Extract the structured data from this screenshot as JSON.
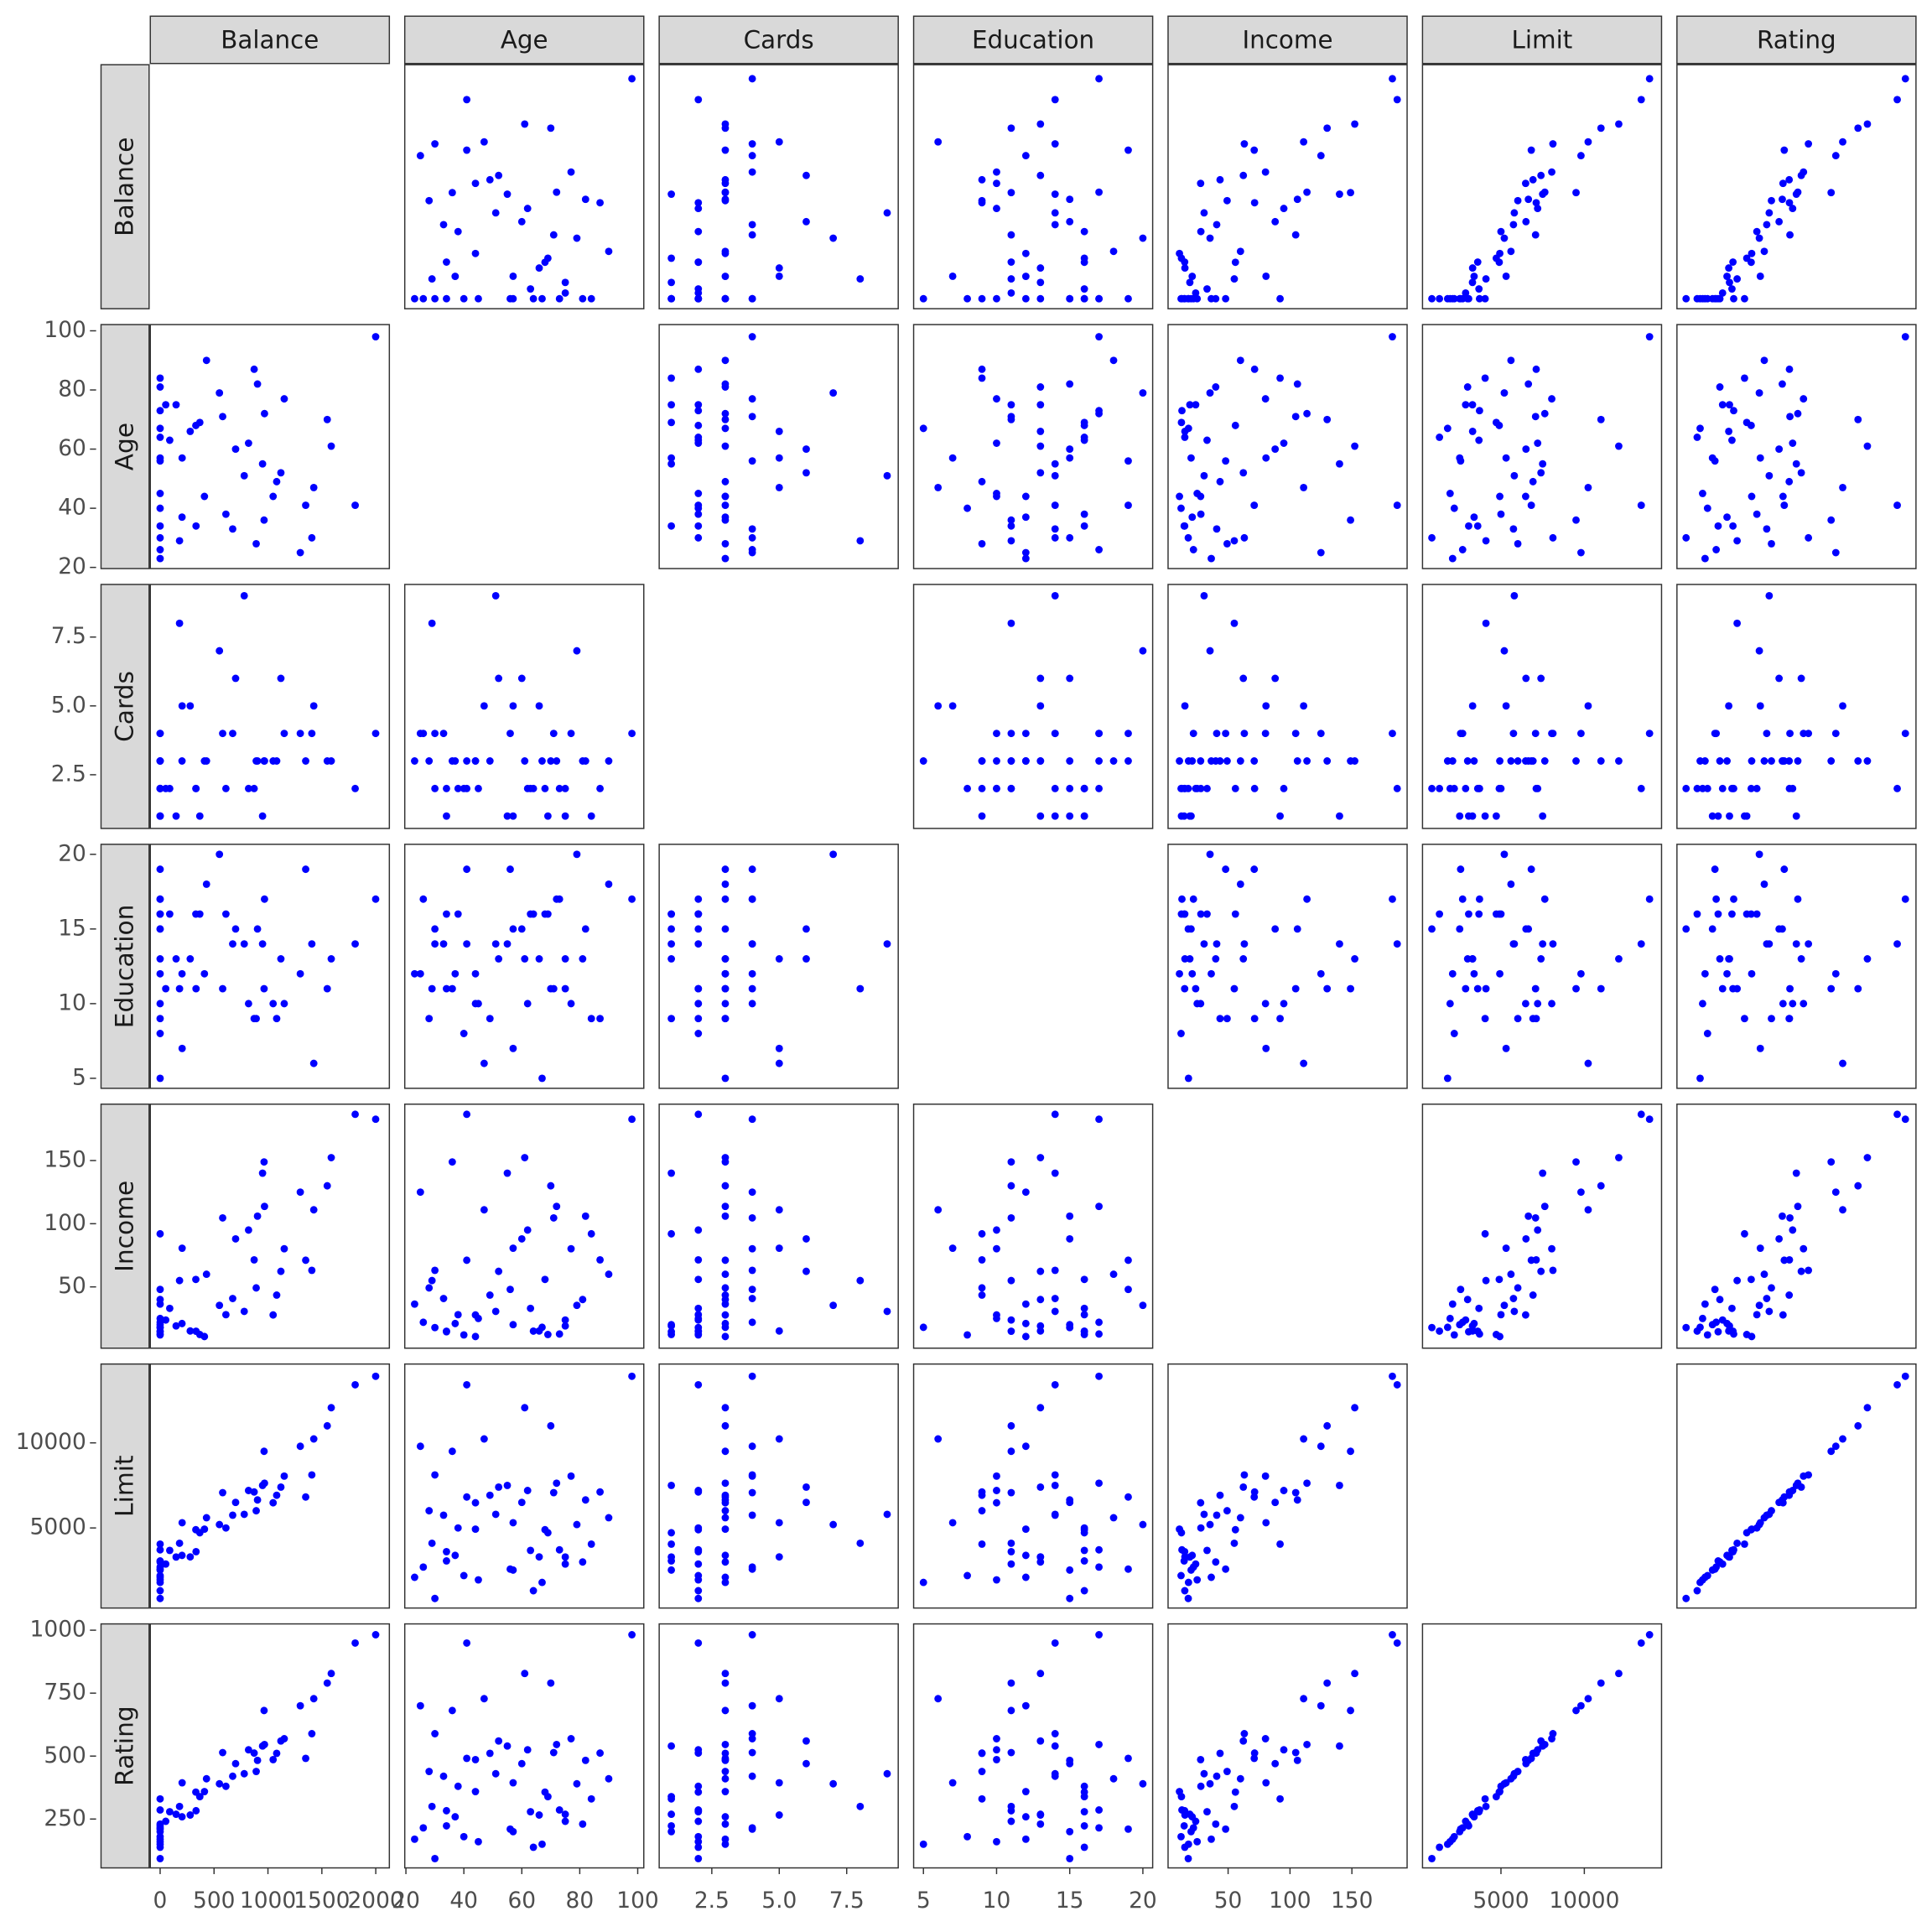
{
  "chart_data": {
    "type": "scatter_matrix",
    "color": "#0000ff",
    "variables": [
      {
        "name": "Balance",
        "lim": [
          -91,
          2126
        ],
        "ticks": [
          0,
          500,
          1000,
          1500,
          2000
        ],
        "values": [
          333,
          903,
          580,
          964,
          331,
          1151,
          203,
          872,
          279,
          1350,
          1407,
          0,
          204,
          1081,
          148,
          0,
          0,
          368,
          891,
          1048,
          89,
          968,
          0,
          411,
          0,
          1999,
          1809,
          1587,
          0,
          1425,
          0,
          52,
          673,
          0,
          1120,
          0,
          550,
          780,
          180,
          0,
          1300,
          430,
          0,
          700,
          950,
          0,
          610,
          1550,
          0,
          820
        ]
      },
      {
        "name": "Age",
        "lim": [
          19.6,
          102.1
        ],
        "ticks": [
          20,
          40,
          60,
          80,
          100
        ],
        "values": [
          34,
          82,
          71,
          36,
          68,
          77,
          37,
          87,
          66,
          41,
          30,
          64,
          57,
          49,
          75,
          57,
          73,
          69,
          28,
          44,
          63,
          72,
          34,
          44,
          30,
          98,
          41,
          61,
          23,
          47,
          56,
          75,
          33,
          84,
          52,
          45,
          79,
          51,
          29,
          67,
          25,
          90,
          40,
          60,
          55,
          81,
          38,
          70,
          26,
          62
        ]
      },
      {
        "name": "Cards",
        "lim": [
          0.55,
          9.41
        ],
        "ticks": [
          2.5,
          {
            "value": 5,
            "label": "5.0"
          },
          7.5
        ],
        "values": [
          2,
          3,
          4,
          3,
          2,
          4,
          3,
          2,
          5,
          3,
          4,
          2,
          5,
          3,
          1,
          1,
          2,
          1,
          3,
          3,
          2,
          3,
          1,
          3,
          2,
          4,
          2,
          3,
          3,
          5,
          4,
          2,
          4,
          1,
          6,
          2,
          7,
          9,
          8,
          3,
          4,
          3,
          2,
          6,
          1,
          3,
          2,
          3,
          4,
          2
        ]
      },
      {
        "name": "Education",
        "lim": [
          4.33,
          20.67
        ],
        "ticks": [
          5,
          10,
          15,
          20
        ],
        "values": [
          11,
          15,
          11,
          11,
          16,
          10,
          12,
          9,
          13,
          19,
          14,
          16,
          7,
          9,
          13,
          15,
          17,
          16,
          9,
          10,
          16,
          17,
          16,
          12,
          15,
          17,
          14,
          13,
          12,
          6,
          19,
          11,
          14,
          9,
          13,
          10,
          20,
          14,
          11,
          5,
          12,
          18,
          8,
          15,
          14,
          13,
          16,
          11,
          17,
          10
        ]
      },
      {
        "name": "Income",
        "lim": [
          1.5,
          194.6
        ],
        "ticks": [
          50,
          100,
          150
        ],
        "values": [
          14.9,
          106.0,
          104.6,
          148.9,
          55.9,
          80.2,
          21.0,
          71.4,
          15.1,
          71.1,
          63.1,
          15.0,
          80.6,
          43.5,
          19.1,
          20.1,
          12.7,
          12.3,
          49.2,
          27.8,
          33.0,
          113.7,
          14.5,
          10.7,
          17.8,
          182.7,
          186.6,
          152.3,
          36.4,
          111.0,
          48.0,
          23.8,
          40.8,
          92.0,
          62.3,
          25.0,
          35.4,
          30.6,
          55.0,
          18.0,
          125.0,
          60.0,
          12.0,
          88.0,
          140.0,
          40.0,
          28.0,
          130.0,
          22.0,
          95.0
        ]
      },
      {
        "name": "Limit",
        "lim": [
          294,
          14632
        ],
        "ticks": [
          5000,
          10000
        ],
        "values": [
          3606,
          6645,
          7075,
          9504,
          4897,
          8047,
          3388,
          7114,
          3300,
          6819,
          8117,
          1311,
          5308,
          6922,
          3291,
          2525,
          3714,
          4718,
          6012,
          6480,
          3680,
          7630,
          3062,
          4930,
          855,
          13913,
          13414,
          12066,
          2100,
          10230,
          2580,
          2880,
          5750,
          4050,
          7400,
          1950,
          5200,
          5800,
          4100,
          1800,
          9800,
          5600,
          2200,
          6500,
          7500,
          3000,
          5000,
          11000,
          2700,
          7200
        ]
      },
      {
        "name": "Rating",
        "lim": [
          56,
          1025
        ],
        "ticks": [
          250,
          500,
          750,
          1000
        ],
        "values": [
          283,
          483,
          514,
          681,
          357,
          569,
          259,
          512,
          266,
          491,
          589,
          138,
          394,
          511,
          269,
          200,
          286,
          339,
          439,
          486,
          279,
          546,
          223,
          359,
          93,
          982,
          949,
          828,
          170,
          728,
          210,
          241,
          420,
          330,
          560,
          160,
          390,
          430,
          300,
          150,
          700,
          410,
          180,
          470,
          540,
          230,
          380,
          790,
          215,
          525
        ]
      }
    ]
  }
}
